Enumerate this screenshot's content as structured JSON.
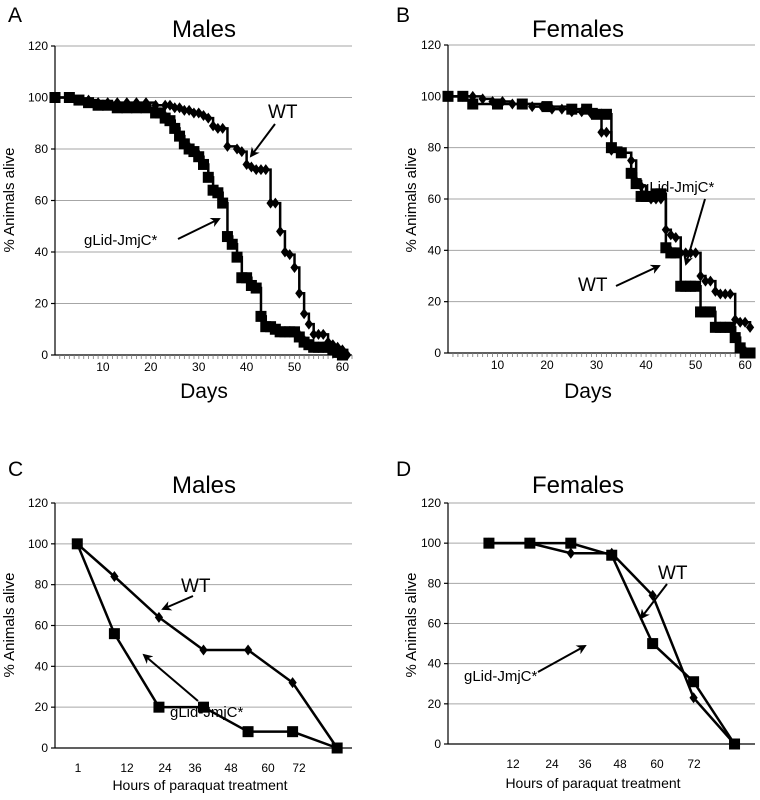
{
  "chart_data": [
    {
      "panel": "A",
      "type": "line",
      "title": "Males",
      "xlabel": "Days",
      "ylabel": "% Animals alive",
      "xlim": [
        0,
        62
      ],
      "ylim": [
        0,
        120
      ],
      "xticks": [
        10,
        20,
        30,
        40,
        50,
        60
      ],
      "yticks": [
        0,
        20,
        40,
        60,
        80,
        100,
        120
      ],
      "series": [
        {
          "name": "WT",
          "marker": "diamond",
          "step": true,
          "x": [
            0,
            3,
            5,
            7,
            9,
            11,
            13,
            15,
            17,
            19,
            21,
            23,
            24,
            25,
            26,
            27,
            28,
            29,
            30,
            31,
            32,
            33,
            34,
            35,
            36,
            38,
            39,
            40,
            41,
            42,
            43,
            44,
            45,
            46,
            47,
            48,
            49,
            50,
            51,
            52,
            53,
            54,
            55,
            56,
            57,
            58,
            59,
            60,
            61
          ],
          "y": [
            100,
            100,
            99,
            99,
            98,
            98,
            98,
            98,
            98,
            98,
            97,
            97,
            97,
            96,
            96,
            95,
            95,
            94,
            94,
            93,
            92,
            89,
            88,
            88,
            81,
            80,
            79,
            74,
            73,
            72,
            72,
            72,
            59,
            59,
            48,
            40,
            39,
            34,
            24,
            16,
            12,
            8,
            8,
            8,
            5,
            4,
            3,
            2,
            0
          ]
        },
        {
          "name": "gLid-JmjC*",
          "marker": "square",
          "step": true,
          "x": [
            0,
            3,
            5,
            7,
            9,
            11,
            13,
            15,
            17,
            19,
            21,
            22,
            23,
            24,
            25,
            26,
            27,
            28,
            29,
            30,
            31,
            32,
            33,
            34,
            35,
            36,
            37,
            38,
            39,
            40,
            41,
            42,
            43,
            44,
            45,
            46,
            47,
            48,
            49,
            50,
            51,
            52,
            53,
            54,
            55,
            56,
            57,
            58,
            59,
            60
          ],
          "y": [
            100,
            100,
            99,
            98,
            97,
            97,
            96,
            96,
            96,
            96,
            94,
            94,
            92,
            91,
            88,
            85,
            82,
            80,
            79,
            77,
            74,
            69,
            64,
            63,
            59,
            46,
            43,
            38,
            30,
            30,
            27,
            26,
            15,
            11,
            11,
            10,
            9,
            9,
            9,
            9,
            7,
            5,
            4,
            3,
            3,
            3,
            3,
            2,
            1,
            0
          ]
        }
      ],
      "annotations": [
        "WT",
        "gLid-JmjC*"
      ]
    },
    {
      "panel": "B",
      "type": "line",
      "title": "Females",
      "xlabel": "Days",
      "ylabel": "% Animals alive",
      "xlim": [
        0,
        62
      ],
      "ylim": [
        0,
        120
      ],
      "xticks": [
        10,
        20,
        30,
        40,
        50,
        60
      ],
      "yticks": [
        0,
        20,
        40,
        60,
        80,
        100,
        120
      ],
      "series": [
        {
          "name": "WT",
          "marker": "diamond",
          "step": true,
          "x": [
            0,
            3,
            5,
            7,
            9,
            11,
            13,
            15,
            17,
            19,
            21,
            23,
            25,
            27,
            29,
            31,
            32,
            33,
            35,
            37,
            38,
            39,
            40,
            41,
            42,
            43,
            44,
            45,
            46,
            47,
            48,
            49,
            50,
            51,
            52,
            53,
            54,
            55,
            56,
            57,
            58,
            59,
            60,
            61
          ],
          "y": [
            100,
            100,
            100,
            99,
            98,
            98,
            97,
            97,
            96,
            96,
            95,
            95,
            94,
            94,
            93,
            86,
            86,
            79,
            78,
            75,
            67,
            65,
            62,
            60,
            60,
            60,
            48,
            46,
            45,
            39,
            39,
            39,
            39,
            30,
            28,
            28,
            24,
            23,
            23,
            23,
            13,
            12,
            12,
            10
          ]
        },
        {
          "name": "gLid-JmjC*",
          "marker": "square",
          "step": true,
          "x": [
            0,
            3,
            5,
            10,
            15,
            20,
            25,
            28,
            30,
            32,
            33,
            35,
            37,
            38,
            39,
            40,
            41,
            42,
            43,
            44,
            45,
            46,
            47,
            48,
            49,
            50,
            51,
            52,
            53,
            54,
            55,
            56,
            57,
            58,
            59,
            60,
            61
          ],
          "y": [
            100,
            100,
            97,
            97,
            97,
            96,
            95,
            95,
            93,
            93,
            80,
            78,
            70,
            66,
            61,
            61,
            61,
            62,
            62,
            41,
            39,
            39,
            26,
            26,
            26,
            26,
            16,
            16,
            16,
            10,
            10,
            10,
            10,
            6,
            2,
            0,
            0
          ]
        }
      ],
      "annotations": [
        "gLid-JmjC*",
        "WT"
      ]
    },
    {
      "panel": "C",
      "type": "line",
      "title": "Males",
      "xlabel": "Hours of paraquat treatment",
      "ylabel": "% Animals alive",
      "ylim": [
        0,
        120
      ],
      "categories": [
        "1",
        "12",
        "24",
        "36",
        "48",
        "60",
        "72"
      ],
      "yticks": [
        0,
        20,
        40,
        60,
        80,
        100,
        120
      ],
      "series": [
        {
          "name": "WT",
          "marker": "diamond",
          "x": [
            1,
            6,
            12,
            18,
            24,
            30,
            36
          ],
          "y": [
            100,
            84,
            64,
            48,
            48,
            32,
            0
          ]
        },
        {
          "name": "gLid-JmjC*",
          "marker": "square",
          "x": [
            1,
            6,
            12,
            18,
            24,
            30,
            36
          ],
          "y": [
            100,
            56,
            20,
            20,
            8,
            8,
            0
          ]
        }
      ],
      "annotations": [
        "WT",
        "gLid-JmjC*"
      ]
    },
    {
      "panel": "D",
      "type": "line",
      "title": "Females",
      "xlabel": "Hours of paraquat treatment",
      "ylabel": "% Animals alive",
      "ylim": [
        0,
        120
      ],
      "categories": [
        "12",
        "24",
        "36",
        "48",
        "60",
        "72"
      ],
      "yticks": [
        0,
        20,
        40,
        60,
        80,
        100,
        120
      ],
      "series": [
        {
          "name": "WT",
          "marker": "diamond",
          "x": [
            6,
            12,
            18,
            24,
            30,
            36,
            42
          ],
          "y": [
            100,
            100,
            95,
            95,
            74,
            23,
            0
          ]
        },
        {
          "name": "gLid-JmjC*",
          "marker": "square",
          "x": [
            6,
            12,
            18,
            24,
            30,
            36,
            42
          ],
          "y": [
            100,
            100,
            100,
            94,
            50,
            31,
            0
          ]
        }
      ],
      "annotations": [
        "WT",
        "gLid-JmjC*"
      ]
    }
  ]
}
